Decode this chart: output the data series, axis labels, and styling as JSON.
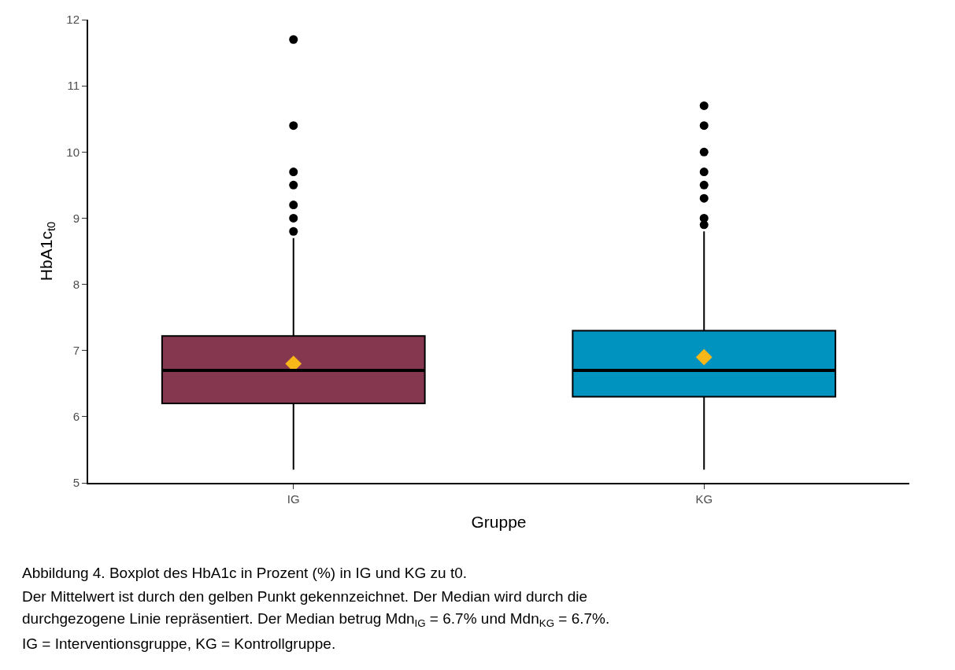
{
  "chart_data": {
    "type": "box",
    "xlabel": "Gruppe",
    "ylabel": "HbA1c$_{t0}$",
    "categories": [
      "IG",
      "KG"
    ],
    "colors": [
      "#85374f",
      "#0093bf"
    ],
    "boxes": [
      {
        "low": 5.2,
        "q1": 6.2,
        "median": 6.7,
        "q3": 7.22,
        "high": 8.7,
        "outliers": [
          8.8,
          9.0,
          9.2,
          9.5,
          9.7,
          10.4,
          11.7
        ]
      },
      {
        "low": 5.2,
        "q1": 6.3,
        "median": 6.7,
        "q3": 7.3,
        "high": 8.8,
        "outliers": [
          8.9,
          9.0,
          9.3,
          9.5,
          9.7,
          10.0,
          10.4,
          10.7
        ]
      }
    ],
    "series": [
      {
        "type": "scatter",
        "x": [
          "IG",
          "KG"
        ],
        "values": [
          6.8,
          6.9
        ],
        "color": "#f7b719",
        "marker": "diamond"
      }
    ],
    "ylim": [
      5,
      12
    ],
    "yticks": [
      5,
      6,
      7,
      8,
      9,
      10,
      11,
      12
    ],
    "annotations": [
      "Abbildung 4. Boxplot des HbA1c in Prozent (%) in IG und KG zu t0.",
      "Der Mittelwert ist durch den gelben Punkt gekennzeichnet. Der Median wird durch die",
      "durchgezogene Linie repräsentiert. Der Median betrug Mdn$_{IG}$ = 6.7% und Mdn$_{KG}$ = 6.7%.",
      "IG = Interventionsgruppe, KG = Kontrollgruppe."
    ]
  }
}
